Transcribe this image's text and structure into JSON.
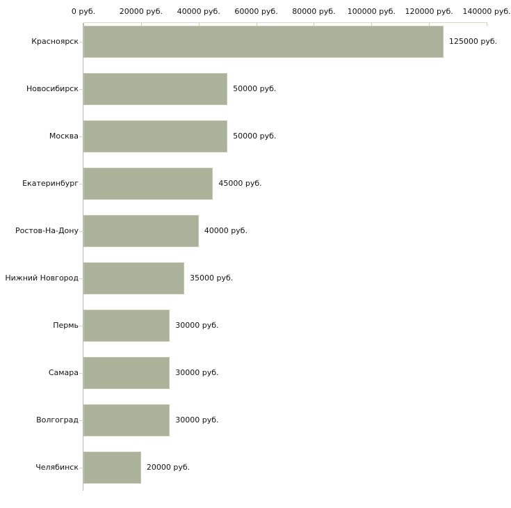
{
  "chart_data": {
    "type": "bar",
    "orientation": "horizontal",
    "title": "",
    "xlabel": "",
    "ylabel": "",
    "categories": [
      "Красноярск",
      "Новосибирск",
      "Москва",
      "Екатеринбург",
      "Ростов-На-Дону",
      "Нижний Новгород",
      "Пермь",
      "Самара",
      "Волгоград",
      "Челябинск"
    ],
    "values": [
      125000,
      50000,
      50000,
      45000,
      40000,
      35000,
      30000,
      30000,
      30000,
      20000
    ],
    "value_labels": [
      "125000 руб.",
      "50000 руб.",
      "50000 руб.",
      "45000 руб.",
      "40000 руб.",
      "35000 руб.",
      "30000 руб.",
      "30000 руб.",
      "30000 руб.",
      "20000 руб."
    ],
    "x_ticks": [
      {
        "value": 0,
        "label": "0 руб."
      },
      {
        "value": 20000,
        "label": "20000 руб."
      },
      {
        "value": 40000,
        "label": "40000 руб."
      },
      {
        "value": 60000,
        "label": "60000 руб."
      },
      {
        "value": 80000,
        "label": "80000 руб."
      },
      {
        "value": 100000,
        "label": "100000 руб."
      },
      {
        "value": 120000,
        "label": "120000 руб."
      },
      {
        "value": 140000,
        "label": "140000 руб."
      }
    ],
    "xlim": [
      0,
      140000
    ],
    "grid": false,
    "legend": false,
    "axis_position": "top",
    "colors": {
      "bar_fill": "#acb199",
      "bar_border": "#c4c8b2",
      "top_axis_line": "#d9d9c0",
      "tick_mark": "#c9c9a5",
      "left_axis_line": "#b3b3b3",
      "category_tick": "#d4d4b8",
      "text": "#111111",
      "background": "#ffffff"
    }
  }
}
